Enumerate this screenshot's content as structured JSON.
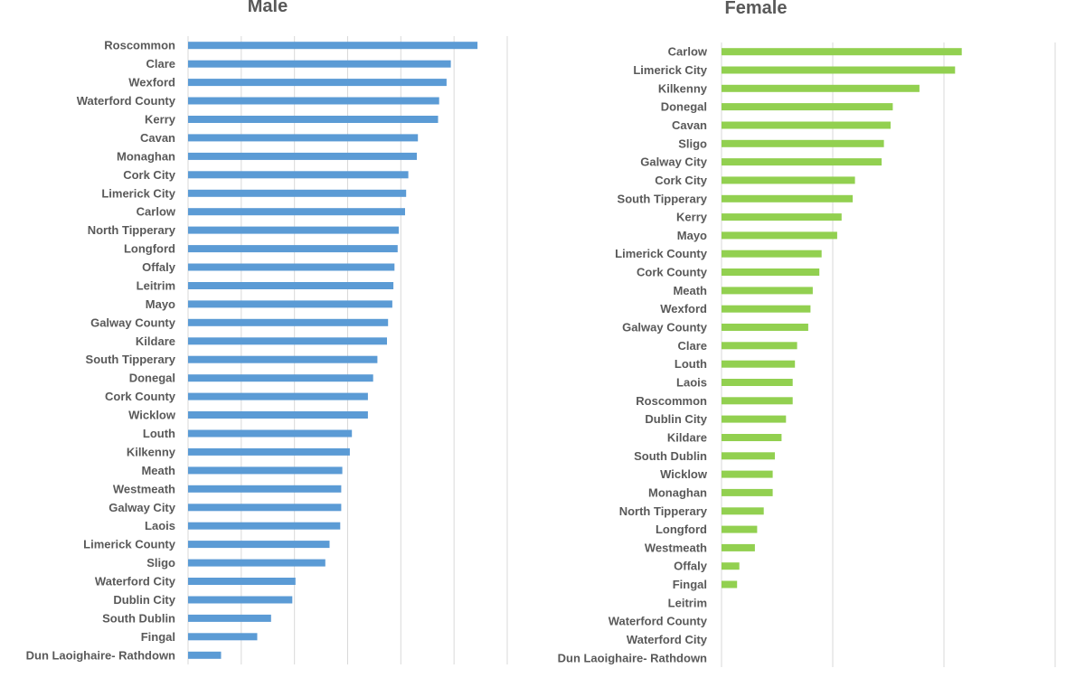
{
  "chart_data": [
    {
      "type": "bar",
      "orientation": "horizontal",
      "title": "Male",
      "color": "#5b9bd5",
      "grid": true,
      "categories": [
        "Roscommon",
        "Clare",
        "Wexford",
        "Waterford County",
        "Kerry",
        "Cavan",
        "Monaghan",
        "Cork City",
        "Limerick City",
        "Carlow",
        "North Tipperary",
        "Longford",
        "Offaly",
        "Leitrim",
        "Mayo",
        "Galway County",
        "Kildare",
        "South Tipperary",
        "Donegal",
        "Cork County",
        "Wicklow",
        "Louth",
        "Kilkenny",
        "Meath",
        "Westmeath",
        "Galway City",
        "Laois",
        "Limerick County",
        "Sligo",
        "Waterford City",
        "Dublin City",
        "South Dublin",
        "Fingal",
        "Dun Laoighaire- Rathdown"
      ],
      "values": [
        27.2,
        24.7,
        24.3,
        23.6,
        23.5,
        21.6,
        21.5,
        20.7,
        20.5,
        20.4,
        19.8,
        19.7,
        19.4,
        19.3,
        19.2,
        18.8,
        18.7,
        17.8,
        17.4,
        16.9,
        16.9,
        15.4,
        15.2,
        14.5,
        14.4,
        14.4,
        14.3,
        13.3,
        12.9,
        10.1,
        9.8,
        7.8,
        6.5,
        3.1
      ],
      "xlim": [
        0,
        30
      ]
    },
    {
      "type": "bar",
      "orientation": "horizontal",
      "title": "Female",
      "color": "#92d050",
      "grid": true,
      "categories": [
        "Carlow",
        "Limerick City",
        "Kilkenny",
        "Donegal",
        "Cavan",
        "Sligo",
        "Galway City",
        "Cork City",
        "South Tipperary",
        "Kerry",
        "Mayo",
        "Limerick County",
        "Cork County",
        "Meath",
        "Wexford",
        "Galway County",
        "Clare",
        "Louth",
        "Laois",
        "Roscommon",
        "Dublin City",
        "Kildare",
        "South Dublin",
        "Wicklow",
        "Monaghan",
        "North Tipperary",
        "Longford",
        "Westmeath",
        "Offaly",
        "Fingal",
        "Leitrim",
        "Waterford County",
        "Waterford City",
        "Dun Laoighaire- Rathdown"
      ],
      "values": [
        10.8,
        10.5,
        8.9,
        7.7,
        7.6,
        7.3,
        7.2,
        6.0,
        5.9,
        5.4,
        5.2,
        4.5,
        4.4,
        4.1,
        4.0,
        3.9,
        3.4,
        3.3,
        3.2,
        3.2,
        2.9,
        2.7,
        2.4,
        2.3,
        2.3,
        1.9,
        1.6,
        1.5,
        0.8,
        0.7,
        0,
        0,
        0,
        0
      ],
      "xlim": [
        0,
        15
      ]
    }
  ]
}
